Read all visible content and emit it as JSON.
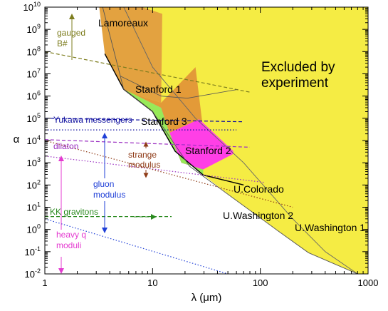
{
  "chart_data": {
    "type": "area",
    "title": "",
    "xlabel": "λ (μm)",
    "ylabel": "α",
    "x_scale": "log",
    "y_scale": "log",
    "xlim": [
      1,
      1000
    ],
    "ylim": [
      0.01,
      10000000000
    ],
    "x_ticks": [
      {
        "value": 1,
        "label": "1"
      },
      {
        "value": 10,
        "label": "10"
      },
      {
        "value": 100,
        "label": "100"
      },
      {
        "value": 1000,
        "label": "1000"
      }
    ],
    "y_ticks": [
      {
        "value": 0.01,
        "base": "10",
        "exp": "-2"
      },
      {
        "value": 0.1,
        "base": "10",
        "exp": "-1"
      },
      {
        "value": 1,
        "base": "10",
        "exp": "0"
      },
      {
        "value": 10,
        "base": "10",
        "exp": "1"
      },
      {
        "value": 100,
        "base": "10",
        "exp": "2"
      },
      {
        "value": 1000,
        "base": "10",
        "exp": "3"
      },
      {
        "value": 10000,
        "base": "10",
        "exp": "4"
      },
      {
        "value": 100000,
        "base": "10",
        "exp": "5"
      },
      {
        "value": 1000000,
        "base": "10",
        "exp": "6"
      },
      {
        "value": 10000000,
        "base": "10",
        "exp": "7"
      },
      {
        "value": 100000000,
        "base": "10",
        "exp": "8"
      },
      {
        "value": 1000000000,
        "base": "10",
        "exp": "9"
      },
      {
        "value": 10000000000,
        "base": "10",
        "exp": "10"
      }
    ],
    "grid": false,
    "colors": {
      "excluded": "#f5ec44",
      "lamoreaux": "#e3a240",
      "stanford1": "#e39a38",
      "stanford3": "#ff3fe6",
      "green": "#98ea58",
      "gauged": "#7d7d1e",
      "yukawa": "#0d0d9e",
      "dilaton": "#9b30c2",
      "strange": "#8e3a16",
      "gluon": "#1f3fd7",
      "kk": "#2a8a1f",
      "heavyq": "#e43bd0"
    },
    "regions": [
      {
        "name": "Excluded by experiment",
        "label_lines": [
          "Excluded by",
          "experiment"
        ],
        "color": "#f5ec44",
        "boundary": [
          [
            3.44,
            10000000000.0
          ],
          [
            3.6,
            80000000.0
          ],
          [
            5.4,
            2000000.0
          ],
          [
            10,
            200000.0
          ],
          [
            16.2,
            3300.0
          ],
          [
            29.5,
            282
          ],
          [
            60,
            20
          ],
          [
            140,
            1
          ],
          [
            280,
            0.09
          ],
          [
            800,
            0.01
          ],
          [
            1000,
            0.01
          ],
          [
            1000,
            10000000000.0
          ]
        ]
      },
      {
        "name": "Lamoreaux",
        "label_lines": [
          "Lamoreaux"
        ],
        "color": "#e3a240",
        "boundary": [
          [
            3.2,
            10000000000.0
          ],
          [
            3.6,
            80000000.0
          ],
          [
            4.2,
            20000000.0
          ],
          [
            5.4,
            2000000.0
          ],
          [
            7.8,
            1000000.0
          ],
          [
            12,
            500000.0
          ],
          [
            12.3,
            5000000000.0
          ],
          [
            8,
            10000000000.0
          ]
        ]
      },
      {
        "name": "Stanford 1",
        "label_lines": [
          "Stanford 1"
        ],
        "color": "#e39a38",
        "boundary": [
          [
            5.4,
            2000000.0
          ],
          [
            7.8,
            1000000.0
          ],
          [
            12,
            500000.0
          ],
          [
            25,
            20000000.0
          ],
          [
            29.5,
            30000.0
          ],
          [
            27,
            90000.0
          ],
          [
            13.7,
            20000.0
          ],
          [
            9.7,
            450000.0
          ],
          [
            7,
            1100000.0
          ]
        ]
      },
      {
        "name": "Stanford 3",
        "label_lines": [
          "Stanford 3"
        ],
        "color": "#ff3fe6",
        "boundary": [
          [
            7,
            1100000.0
          ],
          [
            9.7,
            450000.0
          ],
          [
            13.7,
            20000.0
          ],
          [
            27,
            90000.0
          ],
          [
            56,
            3300.0
          ],
          [
            31,
            1600.0
          ],
          [
            29.5,
            500
          ],
          [
            18.5,
            1000.0
          ],
          [
            14.3,
            24000.0
          ],
          [
            12,
            300000.0
          ]
        ]
      },
      {
        "name": "Stanford 2",
        "label_lines": [
          "Stanford 2"
        ],
        "color": "#ff3fe6",
        "boundary": [
          [
            14.3,
            24000.0
          ],
          [
            18.5,
            1000.0
          ],
          [
            29.5,
            500
          ],
          [
            56,
            2500.0
          ],
          [
            56,
            3300.0
          ],
          [
            27,
            90000.0
          ],
          [
            13.7,
            20000.0
          ]
        ]
      },
      {
        "name": "",
        "label_lines": [],
        "color": "#98ea58",
        "boundary": [
          [
            5.4,
            2000000.0
          ],
          [
            7,
            1100000.0
          ],
          [
            12,
            300000.0
          ],
          [
            14.3,
            24000.0
          ],
          [
            18.5,
            1000.0
          ],
          [
            29.5,
            500
          ],
          [
            29.5,
            282
          ],
          [
            16.2,
            3300.0
          ],
          [
            10,
            200000.0
          ],
          [
            6.2,
            1200000.0
          ]
        ]
      }
    ],
    "curves": [
      {
        "name": "Lamoreaux",
        "points": [
          [
            5,
            8000000.0
          ],
          [
            12,
            1000000.0
          ],
          [
            21,
            800000.0
          ],
          [
            62,
            2000000.0
          ]
        ]
      },
      {
        "name": "U.Colorado",
        "points": [
          [
            3.6,
            80000000.0
          ],
          [
            5.4,
            2000000.0
          ],
          [
            10,
            200000.0
          ],
          [
            16.2,
            3300.0
          ],
          [
            29.5,
            282
          ],
          [
            70,
            100
          ]
        ]
      },
      {
        "name": "U.Washington 2",
        "points": [
          [
            3.44,
            10000000000.0
          ],
          [
            5.4,
            2000000.0
          ],
          [
            10,
            200000.0
          ],
          [
            22,
            700
          ],
          [
            60,
            20
          ],
          [
            140,
            1
          ],
          [
            280,
            0.09
          ],
          [
            800,
            0.01
          ]
        ]
      },
      {
        "name": "U.Washington 1",
        "points": [
          [
            5.4,
            10000000000.0
          ],
          [
            10,
            20000000.0
          ],
          [
            25,
            100000.0
          ],
          [
            70,
            1000.0
          ],
          [
            200,
            3
          ],
          [
            400,
            0.1
          ],
          [
            800,
            0.01
          ]
        ]
      }
    ],
    "theory_lines": [
      {
        "name": "gauged B#",
        "color": "#7d7d1e",
        "style": "dashed",
        "points": [
          [
            1,
            100000000.0
          ],
          [
            80,
            1500000.0
          ]
        ]
      },
      {
        "name": "Yukawa messengers",
        "color": "#0d0d9e",
        "style": "dashed",
        "points": [
          [
            1,
            100000.0
          ],
          [
            70,
            70000.0
          ]
        ]
      },
      {
        "name": "Yukawa messengers (dotted)",
        "color": "#0d0d9e",
        "style": "dotted",
        "points": [
          [
            1,
            30000.0
          ],
          [
            60,
            30000.0
          ]
        ]
      },
      {
        "name": "dilaton",
        "color": "#9b30c2",
        "style": "dashed",
        "points": [
          [
            1,
            11000.0
          ],
          [
            80,
            5000.0
          ]
        ]
      },
      {
        "name": "dilaton (dotted)",
        "color": "#9b30c2",
        "style": "dotted",
        "points": [
          [
            1,
            2000.0
          ],
          [
            110,
            130.0
          ]
        ]
      },
      {
        "name": "strange modulus",
        "color": "#8e3a16",
        "style": "dotted",
        "points": [
          [
            1,
            10000.0
          ],
          [
            200,
            10.0
          ]
        ]
      },
      {
        "name": "KK gravitons",
        "color": "#2a8a1f",
        "style": "dashed",
        "points": [
          [
            1,
            3.8
          ],
          [
            15,
            3.8
          ]
        ]
      },
      {
        "name": "gluon (dotted)",
        "color": "#1f3fd7",
        "style": "dotted",
        "points": [
          [
            1,
            3
          ],
          [
            50,
            0.01
          ]
        ]
      }
    ],
    "annotations": [
      {
        "text_lines": [
          "gauged",
          "B#"
        ],
        "color": "#7d7d1e"
      },
      {
        "text_lines": [
          "Yukawa messengers"
        ],
        "color": "#0d0d9e"
      },
      {
        "text_lines": [
          "dilaton"
        ],
        "color": "#9b30c2"
      },
      {
        "text_lines": [
          "strange",
          "modulus"
        ],
        "color": "#8e3a16"
      },
      {
        "text_lines": [
          "gluon",
          "modulus"
        ],
        "color": "#1f3fd7"
      },
      {
        "text_lines": [
          "KK gravitons"
        ],
        "color": "#2a8a1f"
      },
      {
        "text_lines": [
          "heavy q",
          "moduli"
        ],
        "color": "#e43bd0"
      }
    ],
    "curve_labels": [
      "U.Colorado",
      "U.Washington 2",
      "U.Washington 1"
    ]
  }
}
